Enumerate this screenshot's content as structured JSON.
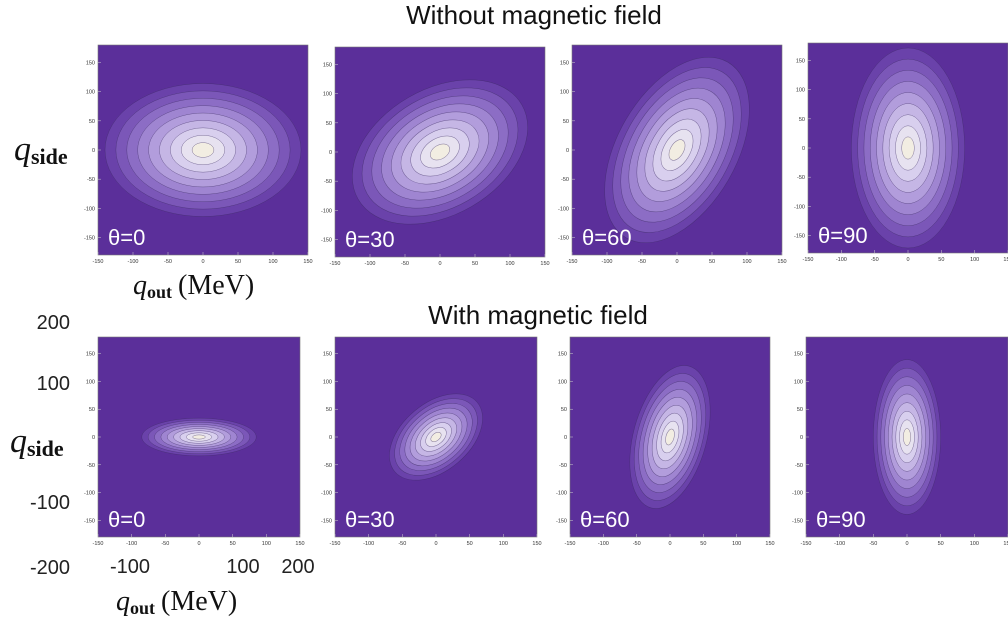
{
  "colors": {
    "background": "#5b2f9a",
    "contour_levels": [
      "#5b2f9a",
      "#6a42aa",
      "#7b57b8",
      "#8c6dc5",
      "#9f85d1",
      "#b29ddc",
      "#c5b6e5",
      "#d8cfee",
      "#e7e2f0",
      "#f2ede2"
    ],
    "contour_line": "#3a2a60"
  },
  "rows": [
    {
      "title": "Without magnetic field",
      "ylabel_main": "q",
      "ylabel_sub": "side",
      "xlabel_main": "q",
      "xlabel_sub": "out",
      "xlabel_unit": "(MeV)"
    },
    {
      "title": "With magnetic field",
      "ylabel_main": "q",
      "ylabel_sub": "side",
      "xlabel_main": "q",
      "xlabel_sub": "out",
      "xlabel_unit": "(MeV)",
      "big_yticks": [
        "200",
        "100",
        "0",
        "-100",
        "-200"
      ],
      "big_xticks": [
        "-100",
        "100",
        "200"
      ]
    }
  ],
  "chart_data": [
    {
      "type": "heatmap",
      "row": 0,
      "panel_label": "θ=0",
      "xlim": [
        -150,
        150
      ],
      "ylim": [
        -180,
        180
      ],
      "xticks": [
        -150,
        -100,
        -50,
        0,
        50,
        100,
        150
      ],
      "yticks": [
        150,
        100,
        50,
        0,
        -50,
        -100,
        -150
      ],
      "tick_labels_x": [
        "-150",
        "-100",
        "-50",
        "0",
        "50",
        "100",
        "150"
      ],
      "tick_labels_y": [
        "150",
        "100",
        "50",
        "0",
        "-50",
        "-100",
        "-150"
      ],
      "ellipse": {
        "center": [
          0,
          0
        ],
        "semi_major": 140,
        "semi_minor": 95,
        "angle_deg": 0
      }
    },
    {
      "type": "heatmap",
      "row": 0,
      "panel_label": "θ=30",
      "xlim": [
        -150,
        150
      ],
      "ylim": [
        -180,
        180
      ],
      "xticks": [
        -150,
        -100,
        -50,
        0,
        50,
        100,
        150
      ],
      "yticks": [
        150,
        100,
        50,
        0,
        -50,
        -100,
        -150
      ],
      "tick_labels_x": [
        "-150",
        "-100",
        "-50",
        "0",
        "50",
        "100",
        "150"
      ],
      "tick_labels_y": [
        "150",
        "100",
        "50",
        "0",
        "-50",
        "-100",
        "-150"
      ],
      "ellipse": {
        "center": [
          0,
          0
        ],
        "semi_major": 135,
        "semi_minor": 90,
        "angle_deg": -30
      }
    },
    {
      "type": "heatmap",
      "row": 0,
      "panel_label": "θ=60",
      "xlim": [
        -150,
        150
      ],
      "ylim": [
        -180,
        180
      ],
      "xticks": [
        -150,
        -100,
        -50,
        0,
        50,
        100,
        150
      ],
      "yticks": [
        150,
        100,
        50,
        0,
        -50,
        -100,
        -150
      ],
      "tick_labels_x": [
        "-150",
        "-100",
        "-50",
        "0",
        "50",
        "100",
        "150"
      ],
      "tick_labels_y": [
        "150",
        "100",
        "50",
        "0",
        "-50",
        "-100",
        "-150"
      ],
      "ellipse": {
        "center": [
          0,
          0
        ],
        "semi_major": 145,
        "semi_minor": 85,
        "angle_deg": -60
      }
    },
    {
      "type": "heatmap",
      "row": 0,
      "panel_label": "θ=90",
      "xlim": [
        -150,
        150
      ],
      "ylim": [
        -180,
        180
      ],
      "xticks": [
        -150,
        -100,
        -50,
        0,
        50,
        100,
        150
      ],
      "yticks": [
        150,
        100,
        50,
        0,
        -50,
        -100,
        -150
      ],
      "tick_labels_x": [
        "-150",
        "-100",
        "-50",
        "0",
        "50",
        "100",
        "150"
      ],
      "tick_labels_y": [
        "150",
        "100",
        "50",
        "0",
        "-50",
        "-100",
        "-150"
      ],
      "ellipse": {
        "center": [
          0,
          0
        ],
        "semi_major": 150,
        "semi_minor": 85,
        "angle_deg": -90
      }
    },
    {
      "type": "heatmap",
      "row": 1,
      "panel_label": "θ=0",
      "xlim": [
        -150,
        150
      ],
      "ylim": [
        -180,
        180
      ],
      "xticks": [
        -150,
        -100,
        -50,
        0,
        50,
        100,
        150
      ],
      "yticks": [
        150,
        100,
        50,
        0,
        -50,
        -100,
        -150
      ],
      "tick_labels_x": [
        "-150",
        "-100",
        "-50",
        "0",
        "50",
        "100",
        "150"
      ],
      "tick_labels_y": [
        "150",
        "100",
        "50",
        "0",
        "-50",
        "-100",
        "-150"
      ],
      "ellipse": {
        "center": [
          0,
          0
        ],
        "semi_major": 85,
        "semi_minor": 28,
        "angle_deg": 0
      }
    },
    {
      "type": "heatmap",
      "row": 1,
      "panel_label": "θ=30",
      "xlim": [
        -150,
        150
      ],
      "ylim": [
        -180,
        180
      ],
      "xticks": [
        -150,
        -100,
        -50,
        0,
        50,
        100,
        150
      ],
      "yticks": [
        150,
        100,
        50,
        0,
        -50,
        -100,
        -150
      ],
      "tick_labels_x": [
        "-150",
        "-100",
        "-50",
        "0",
        "50",
        "100",
        "150"
      ],
      "tick_labels_y": [
        "150",
        "100",
        "50",
        "0",
        "-50",
        "-100",
        "-150"
      ],
      "ellipse": {
        "center": [
          0,
          0
        ],
        "semi_major": 80,
        "semi_minor": 50,
        "angle_deg": -40
      }
    },
    {
      "type": "heatmap",
      "row": 1,
      "panel_label": "θ=60",
      "xlim": [
        -150,
        150
      ],
      "ylim": [
        -180,
        180
      ],
      "xticks": [
        -150,
        -100,
        -50,
        0,
        50,
        100,
        150
      ],
      "yticks": [
        150,
        100,
        50,
        0,
        -50,
        -100,
        -150
      ],
      "tick_labels_x": [
        "-150",
        "-100",
        "-50",
        "0",
        "50",
        "100",
        "150"
      ],
      "tick_labels_y": [
        "150",
        "100",
        "50",
        "0",
        "-50",
        "-100",
        "-150"
      ],
      "ellipse": {
        "center": [
          0,
          0
        ],
        "semi_major": 110,
        "semi_minor": 55,
        "angle_deg": -75
      }
    },
    {
      "type": "heatmap",
      "row": 1,
      "panel_label": "θ=90",
      "xlim": [
        -150,
        150
      ],
      "ylim": [
        -180,
        180
      ],
      "xticks": [
        -150,
        -100,
        -50,
        0,
        50,
        100,
        150
      ],
      "yticks": [
        150,
        100,
        50,
        0,
        -50,
        -100,
        -150
      ],
      "tick_labels_x": [
        "-150",
        "-100",
        "-50",
        "0",
        "50",
        "100",
        "150"
      ],
      "tick_labels_y": [
        "150",
        "100",
        "50",
        "0",
        "-50",
        "-100",
        "-150"
      ],
      "ellipse": {
        "center": [
          0,
          0
        ],
        "semi_major": 115,
        "semi_minor": 50,
        "angle_deg": -90
      }
    }
  ]
}
